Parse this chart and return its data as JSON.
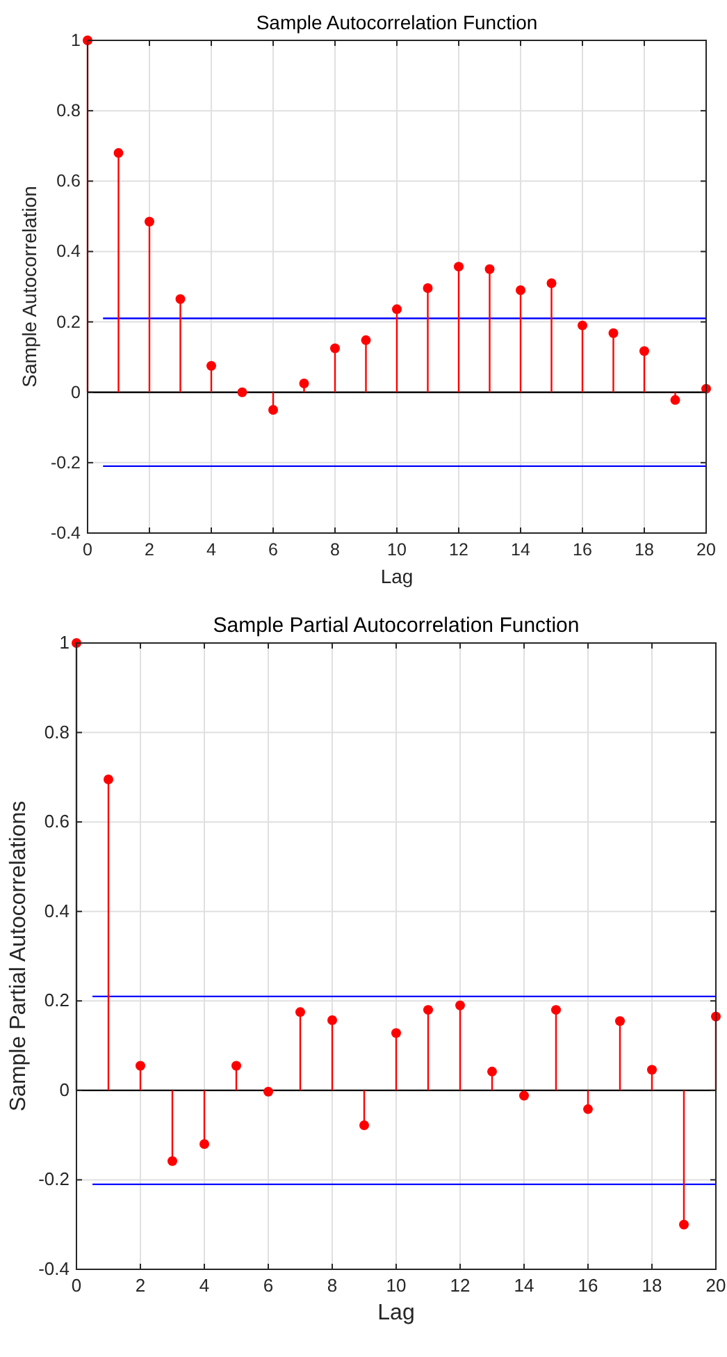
{
  "chart_data": [
    {
      "type": "lollipop",
      "title": "Sample Autocorrelation Function",
      "xlabel": "Lag",
      "ylabel": "Sample Autocorrelation",
      "x": [
        0,
        1,
        2,
        3,
        4,
        5,
        6,
        7,
        8,
        9,
        10,
        11,
        12,
        13,
        14,
        15,
        16,
        17,
        18,
        19,
        20
      ],
      "series": [
        {
          "color": "#ff0000",
          "values": [
            1,
            0.68,
            0.485,
            0.265,
            0.075,
            0.0,
            -0.05,
            0.025,
            0.125,
            0.148,
            0.236,
            0.296,
            0.357,
            0.35,
            0.29,
            0.31,
            0.19,
            0.168,
            0.117,
            -0.022,
            0.01
          ]
        }
      ],
      "xlim": [
        0,
        20
      ],
      "xticks": [
        0,
        2,
        4,
        6,
        8,
        10,
        12,
        14,
        16,
        18,
        20
      ],
      "ylim": [
        -0.4,
        1
      ],
      "yticks": [
        -0.4,
        -0.2,
        0,
        0.2,
        0.4,
        0.6,
        0.8,
        1
      ],
      "grid": true,
      "marker": "circle",
      "ref_lines": [
        {
          "axis": "y",
          "value": 0.21,
          "color": "#0000ff"
        },
        {
          "axis": "y",
          "value": -0.21,
          "color": "#0000ff"
        }
      ]
    },
    {
      "type": "lollipop",
      "title": "Sample Partial Autocorrelation Function",
      "xlabel": "Lag",
      "ylabel": "Sample Partial Autocorrelations",
      "x": [
        0,
        1,
        2,
        3,
        4,
        5,
        6,
        7,
        8,
        9,
        10,
        11,
        12,
        13,
        14,
        15,
        16,
        17,
        18,
        19,
        20
      ],
      "series": [
        {
          "color": "#ff0000",
          "values": [
            1,
            0.695,
            0.055,
            -0.158,
            -0.12,
            0.055,
            -0.003,
            0.175,
            0.157,
            -0.078,
            0.128,
            0.18,
            0.19,
            0.042,
            -0.012,
            0.18,
            -0.042,
            0.155,
            0.046,
            -0.3,
            0.165
          ]
        }
      ],
      "xlim": [
        0,
        20
      ],
      "xticks": [
        0,
        2,
        4,
        6,
        8,
        10,
        12,
        14,
        16,
        18,
        20
      ],
      "ylim": [
        -0.4,
        1
      ],
      "yticks": [
        -0.4,
        -0.2,
        0,
        0.2,
        0.4,
        0.6,
        0.8,
        1
      ],
      "grid": true,
      "marker": "circle",
      "ref_lines": [
        {
          "axis": "y",
          "value": 0.21,
          "color": "#0000ff"
        },
        {
          "axis": "y",
          "value": -0.21,
          "color": "#0000ff"
        }
      ]
    }
  ]
}
